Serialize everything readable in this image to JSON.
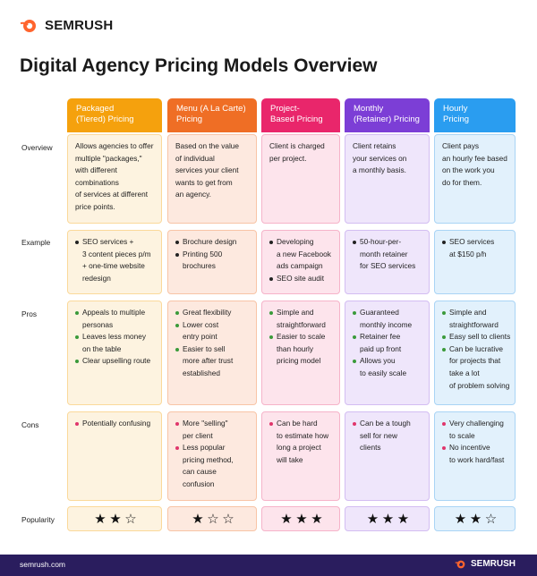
{
  "brand": "SEMRUSH",
  "title": "Digital Agency Pricing Models Overview",
  "row_labels": [
    "Overview",
    "Example",
    "Pros",
    "Cons",
    "Popularity"
  ],
  "columns": [
    {
      "header": [
        "Packaged",
        "(Tiered) Pricing"
      ],
      "header_color": "#f5a10d",
      "cell_color": "#fdf3e0",
      "border_color": "#fbd99a",
      "overview": [
        "Allows agencies to offer",
        "multiple \"packages,\"",
        "with different",
        "combinations",
        "of services at different",
        "price points."
      ],
      "example": [
        [
          "SEO services +",
          "3 content pieces p/m",
          "+ one-time website",
          "redesign"
        ]
      ],
      "pros": [
        [
          "Appeals to multiple",
          "personas"
        ],
        [
          "Leaves less money",
          "on the table"
        ],
        [
          "Clear upselling route"
        ]
      ],
      "cons": [
        [
          "Potentially confusing"
        ]
      ],
      "popularity": 2
    },
    {
      "header": [
        "Menu (A La Carte)",
        "Pricing"
      ],
      "header_color": "#ef6e25",
      "cell_color": "#fde9df",
      "border_color": "#f8c4a6",
      "overview": [
        "Based on the value",
        "of individual",
        "services your client",
        "wants to get from",
        "an agency."
      ],
      "example": [
        [
          "Brochure design"
        ],
        [
          "Printing 500",
          "brochures"
        ]
      ],
      "pros": [
        [
          "Great flexibility"
        ],
        [
          "Lower cost",
          "entry point"
        ],
        [
          "Easier to sell",
          "more after trust",
          "established"
        ]
      ],
      "cons": [
        [
          "More \"selling\"",
          "per client"
        ],
        [
          "Less popular",
          "pricing method,",
          "can cause",
          "confusion"
        ]
      ],
      "popularity": 1
    },
    {
      "header": [
        "Project-",
        "Based Pricing"
      ],
      "header_color": "#e9266b",
      "cell_color": "#fde4ec",
      "border_color": "#f6b3c9",
      "overview": [
        "Client is charged",
        "per project."
      ],
      "example": [
        [
          "Developing",
          "a new Facebook",
          "ads campaign"
        ],
        [
          "SEO site audit"
        ]
      ],
      "pros": [
        [
          "Simple and",
          "straightforward"
        ],
        [
          "Easier to scale",
          "than hourly",
          "pricing model"
        ]
      ],
      "cons": [
        [
          "Can be hard",
          "to estimate how",
          "long a project",
          "will take"
        ]
      ],
      "popularity": 3
    },
    {
      "header": [
        "Monthly",
        "(Retainer) Pricing"
      ],
      "header_color": "#7c3ed6",
      "cell_color": "#efe6fb",
      "border_color": "#d3bdf2",
      "overview": [
        "Client retains",
        "your services on",
        "a monthly basis."
      ],
      "example": [
        [
          "50-hour-per-",
          "month retainer",
          "for SEO services"
        ]
      ],
      "pros": [
        [
          "Guaranteed",
          "monthly income"
        ],
        [
          "Retainer fee",
          "paid up front"
        ],
        [
          "Allows you",
          "to easily scale"
        ]
      ],
      "cons": [
        [
          "Can be a tough",
          "sell for new",
          "clients"
        ]
      ],
      "popularity": 3
    },
    {
      "header": [
        "Hourly",
        "Pricing"
      ],
      "header_color": "#2a9df0",
      "cell_color": "#e2f1fc",
      "border_color": "#a9d4f5",
      "overview": [
        "Client pays",
        "an hourly fee based",
        "on the work you",
        "do for them."
      ],
      "example": [
        [
          "SEO services",
          "at $150 p/h"
        ]
      ],
      "pros": [
        [
          "Simple and",
          "straightforward"
        ],
        [
          "Easy sell to clients"
        ],
        [
          "Can be lucrative",
          "for projects that",
          "take a lot",
          "of problem solving"
        ]
      ],
      "cons": [
        [
          "Very challenging",
          "to scale"
        ],
        [
          "No incentive",
          "to work hard/fast"
        ]
      ],
      "popularity": 2
    }
  ],
  "footer": {
    "url": "semrush.com",
    "brand": "SEMRUSH"
  }
}
